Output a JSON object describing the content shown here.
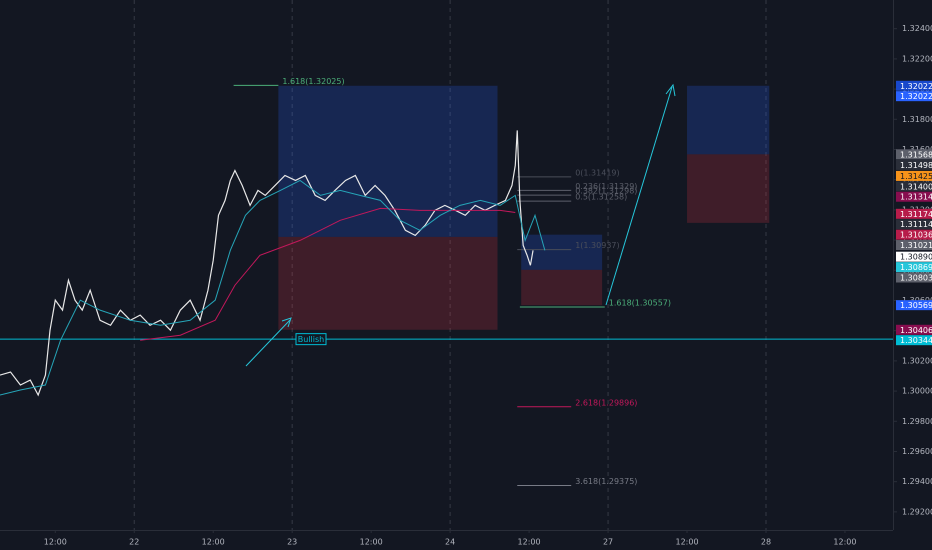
{
  "chart_data": {
    "type": "line",
    "background": "#131722",
    "grid": false,
    "xlim": [
      3.6,
      139.3
    ],
    "xticks": [
      {
        "value": 12,
        "label": "12:00"
      },
      {
        "value": 24,
        "label": "22"
      },
      {
        "value": 36,
        "label": "12:00"
      },
      {
        "value": 48,
        "label": "23"
      },
      {
        "value": 60,
        "label": "12:00"
      },
      {
        "value": 72,
        "label": "24"
      },
      {
        "value": 84,
        "label": "12:00"
      },
      {
        "value": 96,
        "label": "27"
      },
      {
        "value": 108,
        "label": "12:00"
      },
      {
        "value": 120,
        "label": "28"
      },
      {
        "value": 132,
        "label": "12:00"
      }
    ],
    "ylim": [
      1.2908,
      1.3259
    ],
    "yticks": [
      {
        "value": 1.292,
        "label": "1.29200"
      },
      {
        "value": 1.294,
        "label": "1.29400"
      },
      {
        "value": 1.296,
        "label": "1.29600"
      },
      {
        "value": 1.298,
        "label": "1.29800"
      },
      {
        "value": 1.3,
        "label": "1.30000"
      },
      {
        "value": 1.302,
        "label": "1.30200"
      },
      {
        "value": 1.304,
        "label": "1.30400"
      },
      {
        "value": 1.306,
        "label": "1.30600"
      },
      {
        "value": 1.308,
        "label": "1.30800"
      },
      {
        "value": 1.31,
        "label": "1.31000"
      },
      {
        "value": 1.312,
        "label": "1.31200"
      },
      {
        "value": 1.314,
        "label": "1.31400"
      },
      {
        "value": 1.316,
        "label": "1.31600"
      },
      {
        "value": 1.318,
        "label": "1.31800"
      },
      {
        "value": 1.32,
        "label": "1.32000"
      },
      {
        "value": 1.322,
        "label": "1.32200"
      },
      {
        "value": 1.324,
        "label": "1.32400"
      }
    ],
    "series": [
      {
        "color": "#e8e8e8",
        "x": [
          3.6,
          5.2,
          6.7,
          8.2,
          9.4,
          10.5,
          11.2,
          12,
          13.1,
          14,
          15,
          16.1,
          17.3,
          18.8,
          20.4,
          21.9,
          23.4,
          24.9,
          26.4,
          28,
          29.5,
          31,
          32.5,
          34,
          35.2,
          36,
          36.8,
          37.8,
          38.6,
          39.3,
          40.4,
          41.6,
          42.8,
          43.9,
          45.4,
          46.9,
          48.5,
          50,
          51.5,
          53,
          54.5,
          56.1,
          57.6,
          59.1,
          60.6,
          62.1,
          63.6,
          65.2,
          66.7,
          68.2,
          69.7,
          71.2,
          72.8,
          74.3,
          75.8,
          77.3,
          78.8,
          80.4,
          81.4,
          81.9,
          82.2,
          82.6,
          83.1,
          83.7,
          84.2,
          84.6
        ],
        "values": [
          1.30106,
          1.30126,
          1.3004,
          1.30073,
          1.29974,
          1.30106,
          1.30403,
          1.30602,
          1.30536,
          1.30734,
          1.30602,
          1.30536,
          1.30668,
          1.30469,
          1.30436,
          1.30536,
          1.30469,
          1.30503,
          1.30436,
          1.30469,
          1.30403,
          1.30536,
          1.30602,
          1.30469,
          1.30668,
          1.30866,
          1.31164,
          1.31263,
          1.31395,
          1.31461,
          1.31362,
          1.3123,
          1.31329,
          1.31296,
          1.31362,
          1.31428,
          1.31395,
          1.31428,
          1.31296,
          1.31263,
          1.31329,
          1.31395,
          1.31428,
          1.31296,
          1.31362,
          1.31296,
          1.31197,
          1.31065,
          1.31031,
          1.31098,
          1.31197,
          1.3123,
          1.31197,
          1.31164,
          1.3123,
          1.31197,
          1.3123,
          1.31263,
          1.31362,
          1.31494,
          1.31726,
          1.31263,
          1.30965,
          1.30899,
          1.30833,
          1.30932
        ]
      },
      {
        "color": "#c2185b",
        "x": [
          24.9,
          31,
          36.3,
          39.3,
          43.1,
          49.2,
          55.3,
          61.4,
          67.4,
          73.5,
          79.6,
          81.9
        ],
        "values": [
          1.30337,
          1.3037,
          1.30469,
          1.30701,
          1.30899,
          1.30998,
          1.31131,
          1.3121,
          1.31197,
          1.31197,
          1.31197,
          1.31183
        ]
      },
      {
        "color": "#26a5b8",
        "x": [
          3.6,
          6.7,
          10.5,
          12.8,
          15.8,
          18.8,
          23.4,
          28,
          32.5,
          36.3,
          38.6,
          40.9,
          43.1,
          46.2,
          49.2,
          52.3,
          55.3,
          58.3,
          61.4,
          64.4,
          67.4,
          70.5,
          73.5,
          76.6,
          79.6,
          81.9,
          83.4,
          84.9,
          86.4
        ],
        "values": [
          1.29974,
          1.30007,
          1.3004,
          1.30337,
          1.30602,
          1.30536,
          1.30469,
          1.30436,
          1.30469,
          1.30602,
          1.30932,
          1.31164,
          1.31263,
          1.31329,
          1.31395,
          1.31296,
          1.31329,
          1.31296,
          1.31263,
          1.31131,
          1.31065,
          1.31164,
          1.3123,
          1.31263,
          1.3123,
          1.31296,
          1.30998,
          1.31164,
          1.30932
        ]
      }
    ],
    "positions": [
      {
        "x": [
          45.9,
          79.2
        ],
        "top": 1.32022,
        "entry": 1.31021,
        "bottom": 1.30406
      },
      {
        "x": [
          82.8,
          95.1
        ],
        "top": 1.31036,
        "entry": 1.30803,
        "bottom": 1.30569
      },
      {
        "x": [
          108,
          120.5
        ],
        "top": 1.32022,
        "entry": 1.31568,
        "bottom": 1.31114
      }
    ],
    "fib_levels": [
      {
        "label": "1.618(1.32025)",
        "value": 1.32025,
        "color": "#4caf7a",
        "x": [
          39.1,
          45.9
        ]
      },
      {
        "label": "0(1.31419)",
        "value": 1.31419,
        "color": "#4a4e5a",
        "x": [
          82.2,
          90.4
        ]
      },
      {
        "label": "0.236(1.31329)",
        "value": 1.31329,
        "color": "#5d606b",
        "x": [
          82.2,
          90.4
        ]
      },
      {
        "label": "0.382(1.31298)",
        "value": 1.31298,
        "color": "#5d606b",
        "x": [
          82.2,
          90.4
        ]
      },
      {
        "label": "0.5(1.31258)",
        "value": 1.31258,
        "color": "#5d606b",
        "x": [
          82.2,
          90.4
        ]
      },
      {
        "label": "1(1.30937)",
        "value": 1.30937,
        "color": "#4a4e5a",
        "x": [
          82.2,
          90.4
        ]
      },
      {
        "label": "1.618(1.30557)",
        "value": 1.30557,
        "color": "#4caf7a",
        "x": [
          82.6,
          95.5
        ]
      },
      {
        "label": "2.618(1.29896)",
        "value": 1.29896,
        "color": "#c2185b",
        "x": [
          82.2,
          90.4
        ]
      },
      {
        "label": "3.618(1.29375)",
        "value": 1.29375,
        "color": "#787b86",
        "x": [
          82.2,
          90.4
        ]
      }
    ],
    "hline": {
      "value": 1.30344,
      "color": "#00bcd4",
      "label": "Bullish"
    },
    "price_tags": [
      {
        "value": 1.32022,
        "label": "1.32022",
        "color": "#1848cc"
      },
      {
        "value": 1.32022,
        "label": "1.32022",
        "color": "#2962ff"
      },
      {
        "value": 1.31568,
        "label": "1.31568",
        "color": "#5d606b"
      },
      {
        "value": 1.31498,
        "label": "1.31498",
        "color": "#2a2e39"
      },
      {
        "value": 1.31425,
        "label": "1.31425",
        "color": "#f7931a"
      },
      {
        "value": 1.314,
        "label": "1.31400",
        "color": "#2a2e39"
      },
      {
        "value": 1.31314,
        "label": "1.31314",
        "color": "#880e4f"
      },
      {
        "value": 1.31174,
        "label": "1.31174",
        "color": "#b71c4a"
      },
      {
        "value": 1.31114,
        "label": "1.31114",
        "color": "#2a2e39"
      },
      {
        "value": 1.31036,
        "label": "1.31036",
        "color": "#b71c4a"
      },
      {
        "value": 1.31021,
        "label": "1.31021",
        "color": "#5d606b"
      },
      {
        "value": 1.3089,
        "label": "1.30890",
        "color": "#ffffff"
      },
      {
        "value": 1.30869,
        "label": "1.30869",
        "color": "#26c6da"
      },
      {
        "value": 1.30803,
        "label": "1.30803",
        "color": "#5d606b"
      },
      {
        "value": 1.30569,
        "label": "1.30569",
        "color": "#2962ff"
      },
      {
        "value": 1.30406,
        "label": "1.30406",
        "color": "#880e4f"
      },
      {
        "value": 1.30344,
        "label": "1.30344",
        "color": "#00bcd4"
      }
    ]
  }
}
